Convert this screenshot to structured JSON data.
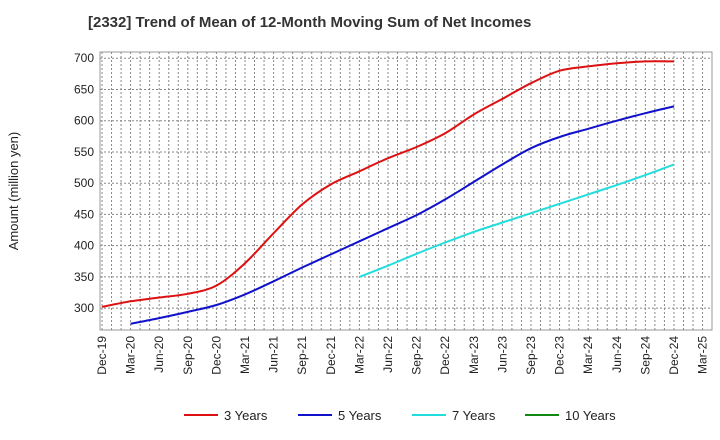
{
  "chart_data": {
    "type": "line",
    "title": "[2332]  Trend of Mean of 12-Month Moving Sum of Net Incomes",
    "xlabel": "",
    "ylabel": "Amount (million yen)",
    "ylim": [
      265,
      710
    ],
    "yticks": [
      300,
      350,
      400,
      450,
      500,
      550,
      600,
      650,
      700
    ],
    "grid": true,
    "legend_position": "bottom",
    "x_ticks": [
      "Dec-19",
      "Mar-20",
      "Jun-20",
      "Sep-20",
      "Dec-20",
      "Mar-21",
      "Jun-21",
      "Sep-21",
      "Dec-21",
      "Mar-22",
      "Jun-22",
      "Sep-22",
      "Dec-22",
      "Mar-23",
      "Jun-23",
      "Sep-23",
      "Dec-23",
      "Mar-24",
      "Jun-24",
      "Sep-24",
      "Dec-24",
      "Mar-25"
    ],
    "series": [
      {
        "name": "3 Years",
        "color": "#dd1111",
        "x": [
          "Dec-19",
          "Mar-20",
          "Jun-20",
          "Sep-20",
          "Dec-20",
          "Mar-21",
          "Jun-21",
          "Sep-21",
          "Dec-21",
          "Mar-22",
          "Jun-22",
          "Sep-22",
          "Dec-22",
          "Mar-23",
          "Jun-23",
          "Sep-23",
          "Dec-23",
          "Mar-24",
          "Jun-24",
          "Sep-24",
          "Dec-24"
        ],
        "values": [
          302,
          311,
          317,
          323,
          336,
          372,
          420,
          466,
          498,
          519,
          540,
          558,
          580,
          610,
          635,
          660,
          680,
          687,
          692,
          695,
          695
        ]
      },
      {
        "name": "5 Years",
        "color": "#1111cc",
        "x": [
          "Mar-20",
          "Jun-20",
          "Sep-20",
          "Dec-20",
          "Mar-21",
          "Jun-21",
          "Sep-21",
          "Dec-21",
          "Mar-22",
          "Jun-22",
          "Sep-22",
          "Dec-22",
          "Mar-23",
          "Jun-23",
          "Sep-23",
          "Dec-23",
          "Mar-24",
          "Jun-24",
          "Sep-24",
          "Dec-24"
        ],
        "values": [
          275,
          284,
          294,
          305,
          322,
          343,
          365,
          386,
          407,
          428,
          449,
          474,
          502,
          530,
          556,
          574,
          587,
          600,
          612,
          623
        ]
      },
      {
        "name": "7 Years",
        "color": "#22dddd",
        "x": [
          "Mar-22",
          "Jun-22",
          "Sep-22",
          "Dec-22",
          "Mar-23",
          "Jun-23",
          "Sep-23",
          "Dec-23",
          "Mar-24",
          "Jun-24",
          "Sep-24",
          "Dec-24"
        ],
        "values": [
          350,
          368,
          387,
          405,
          422,
          437,
          452,
          467,
          482,
          497,
          513,
          530
        ]
      },
      {
        "name": "10 Years",
        "color": "#118811",
        "x": [],
        "values": []
      }
    ]
  }
}
